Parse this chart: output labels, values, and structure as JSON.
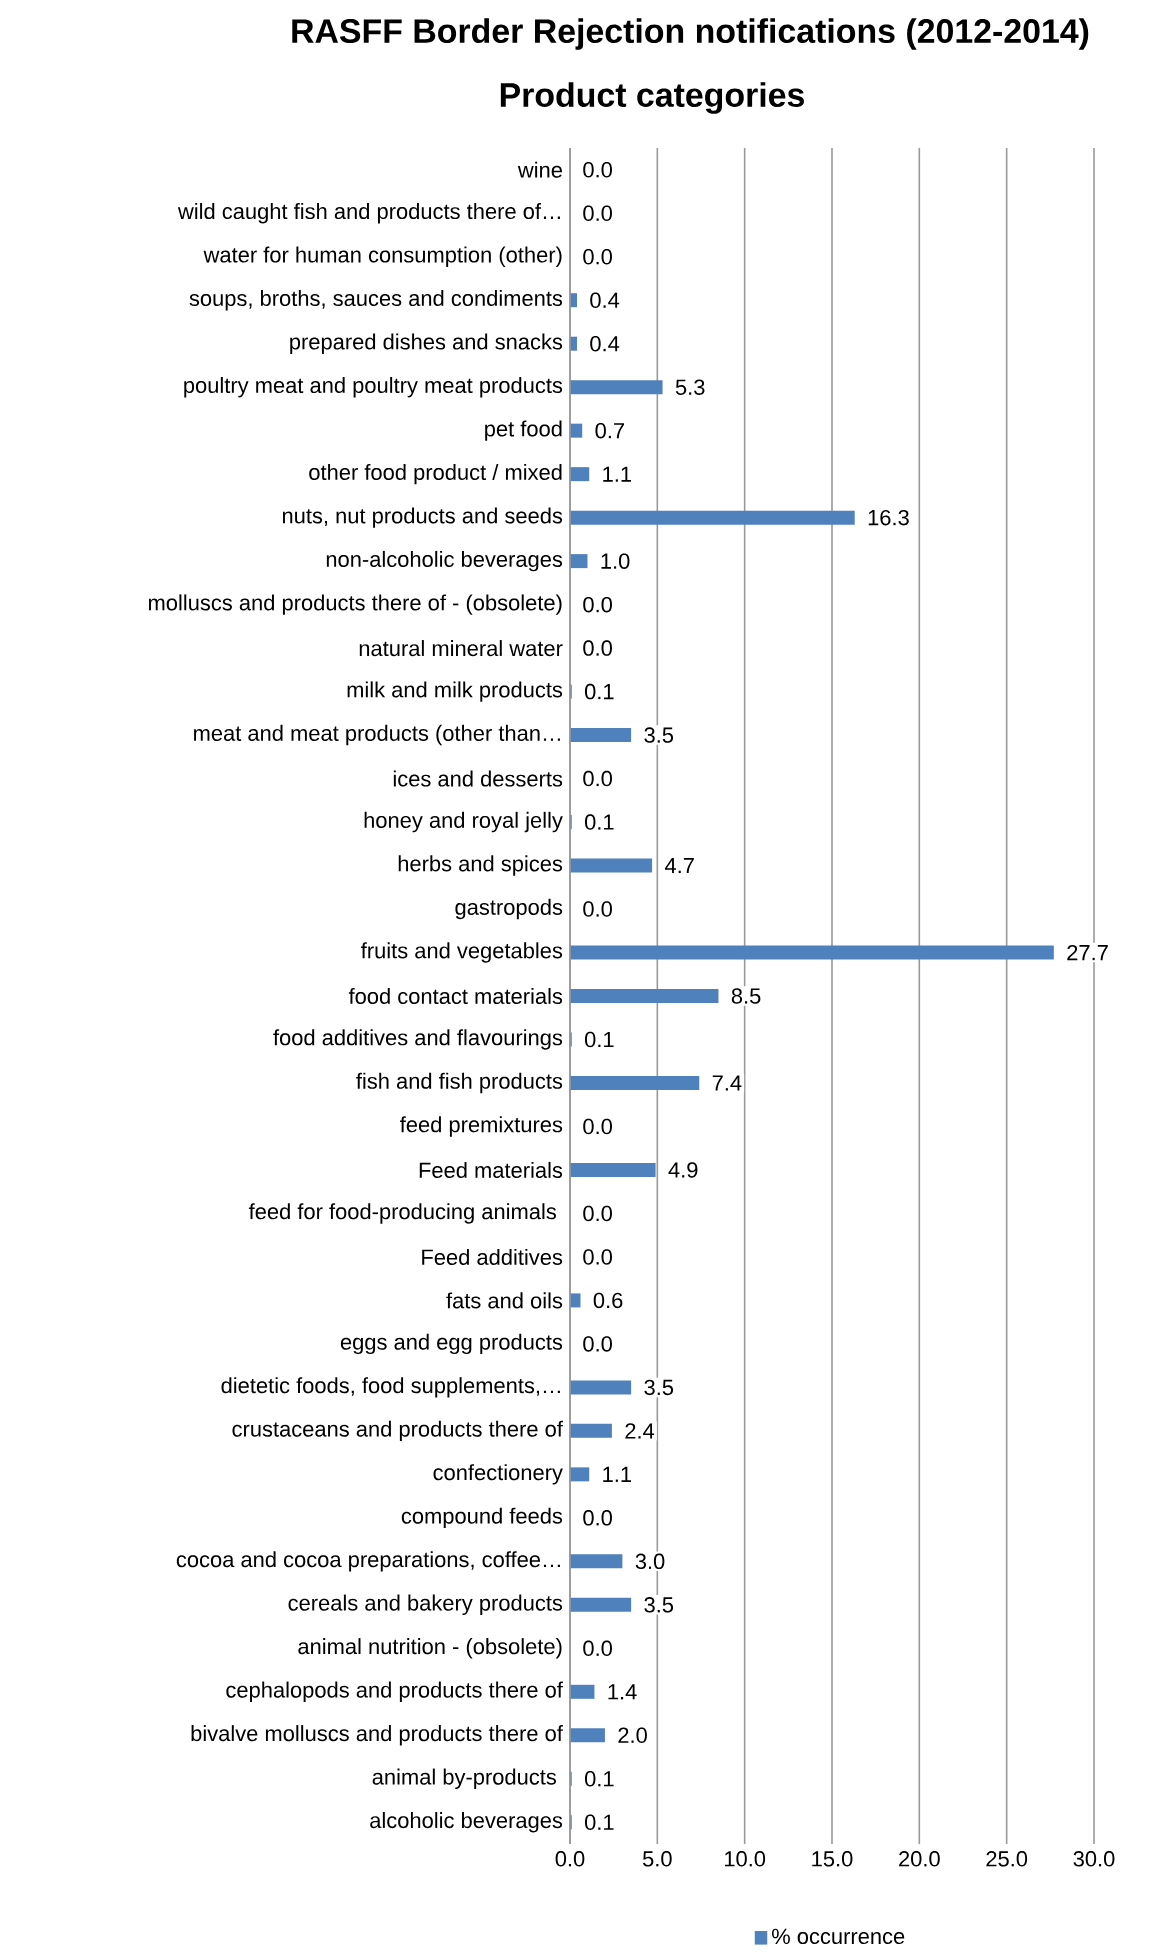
{
  "chart_data": {
    "type": "bar",
    "orientation": "horizontal",
    "title": "RASFF Border Rejection notifications (2012-2014)",
    "subtitle": "Product categories",
    "categories": [
      "wine",
      "wild caught fish and products there of…",
      "water for human consumption (other)",
      "soups, broths, sauces and condiments",
      "prepared dishes and snacks",
      "poultry meat and poultry meat products",
      "pet food",
      "other food product / mixed",
      "nuts, nut products and seeds",
      "non-alcoholic beverages",
      "molluscs and products there of - (obsolete)",
      "natural mineral water",
      "milk and milk products",
      "meat and meat products (other than…",
      "ices and desserts",
      "honey and royal jelly",
      "herbs and spices",
      "gastropods",
      "fruits and vegetables",
      "food contact materials",
      "food additives and flavourings",
      "fish and fish products",
      "feed premixtures",
      "Feed materials",
      "feed for food-producing animals ",
      "Feed additives",
      "fats and oils",
      "eggs and egg products",
      "dietetic foods, food supplements,…",
      "crustaceans and products there  of",
      "confectionery",
      "compound feeds",
      "cocoa and cocoa preparations, coffee…",
      "cereals and bakery products",
      "animal nutrition - (obsolete)",
      "cephalopods and products there  of",
      "bivalve molluscs and products there of",
      "animal by-products ",
      "alcoholic beverages"
    ],
    "series": [
      {
        "name": "% occurrence",
        "color": "#4f81bd",
        "values": [
          0.0,
          0.0,
          0.0,
          0.4,
          0.4,
          5.3,
          0.7,
          1.1,
          16.3,
          1.0,
          0.0,
          0.0,
          0.1,
          3.5,
          0.0,
          0.1,
          4.7,
          0.0,
          27.7,
          8.5,
          0.1,
          7.4,
          0.0,
          4.9,
          0.0,
          0.0,
          0.6,
          0.0,
          3.5,
          2.4,
          1.1,
          0.0,
          3.0,
          3.5,
          0.0,
          1.4,
          2.0,
          0.1,
          0.1
        ],
        "value_labels": [
          "0.0",
          "0.0",
          "0.0",
          "0.4",
          "0.4",
          "5.3",
          "0.7",
          "1.1",
          "16.3",
          "1.0",
          "0.0",
          "0.0",
          "0.1",
          "3.5",
          "0.0",
          "0.1",
          "4.7",
          "0.0",
          "27.7",
          "8.5",
          "0.1",
          "7.4",
          "0.0",
          "4.9",
          "0.0",
          "0.0",
          "0.6",
          "0.0",
          "3.5",
          "2.4",
          "1.1",
          "0.0",
          "3.0",
          "3.5",
          "0.0",
          "1.4",
          "2.0",
          "0.1",
          "0.1"
        ]
      }
    ],
    "xlim": [
      0,
      30
    ],
    "xticks": [
      {
        "value": 0,
        "label": "0.0"
      },
      {
        "value": 5,
        "label": "5.0"
      },
      {
        "value": 10,
        "label": "10.0"
      },
      {
        "value": 15,
        "label": "15.0"
      },
      {
        "value": 20,
        "label": "20.0"
      },
      {
        "value": 25,
        "label": "25.0"
      },
      {
        "value": 30,
        "label": "30.0"
      }
    ],
    "grid": "x",
    "legend": "bottom"
  }
}
